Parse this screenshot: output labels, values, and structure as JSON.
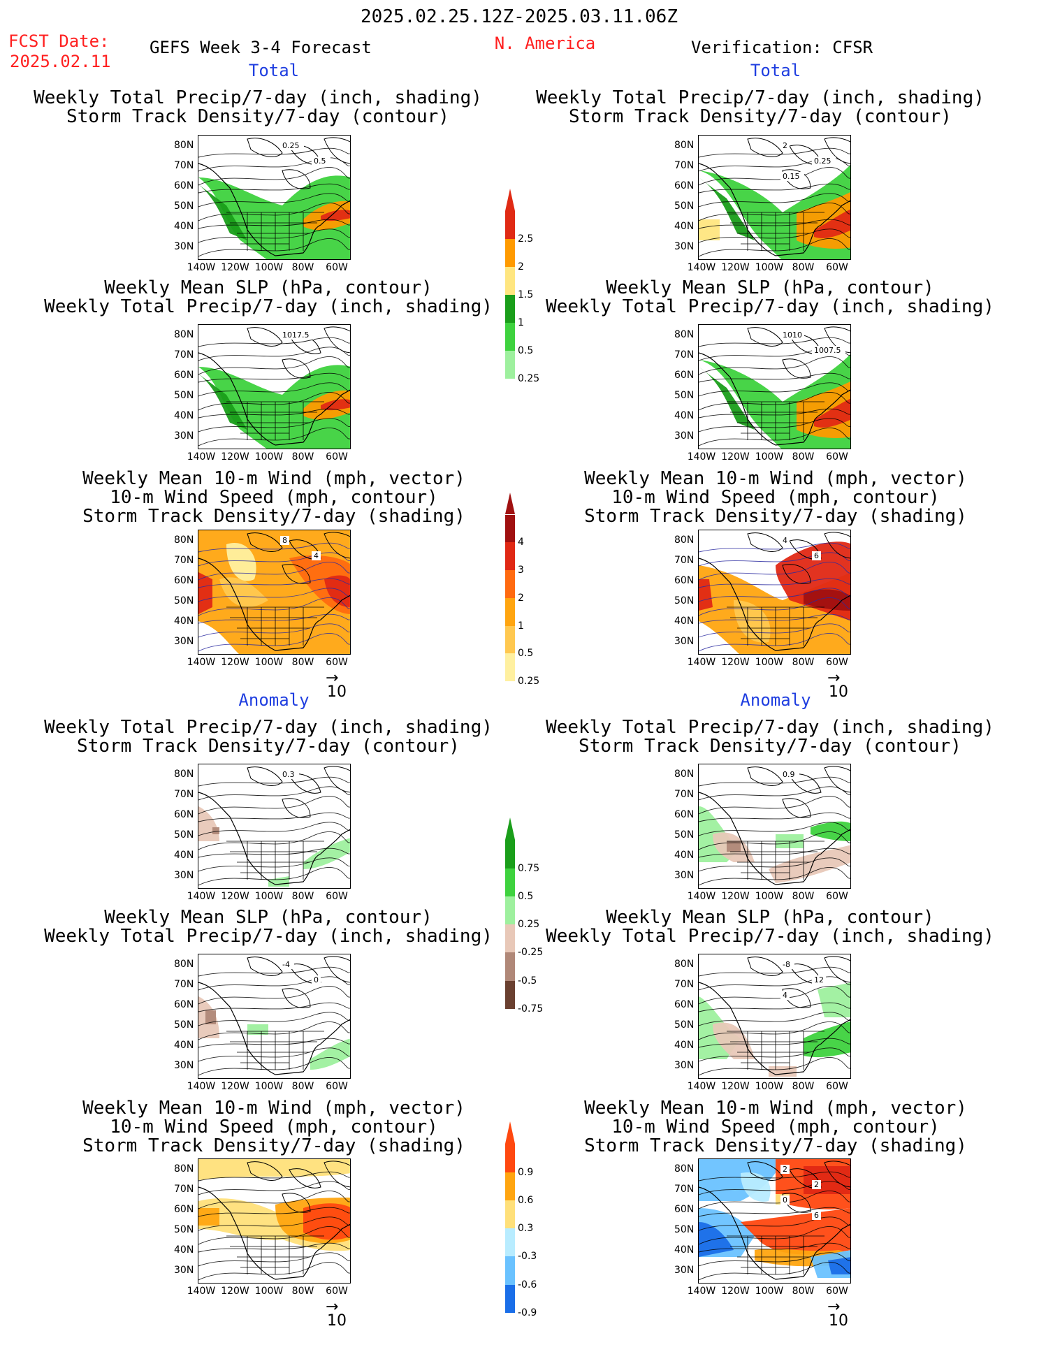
{
  "header": {
    "period": "2025.02.25.12Z-2025.03.11.06Z",
    "fcst_label": "FCST Date:",
    "fcst_date": "2025.02.11",
    "product": "GEFS Week 3-4 Forecast",
    "region": "N. America",
    "verification": "Verification: CFSR"
  },
  "sections": {
    "total_left": "Total",
    "total_right": "Total",
    "anomaly_left": "Anomaly",
    "anomaly_right": "Anomaly"
  },
  "titles": {
    "precip_track": [
      "Weekly Total Precip/7-day (inch, shading)",
      "Storm Track Density/7-day (contour)"
    ],
    "slp_precip": [
      "Weekly Mean SLP (hPa, contour)",
      "Weekly Total Precip/7-day (inch, shading)"
    ],
    "wind": [
      "Weekly Mean 10-m Wind (mph, vector)",
      "10-m Wind Speed (mph, contour)",
      "Storm Track Density/7-day (shading)"
    ]
  },
  "axes": {
    "lat_labels": [
      "80N",
      "70N",
      "60N",
      "50N",
      "40N",
      "30N"
    ],
    "lon_labels": [
      "140W",
      "120W",
      "100W",
      "80W",
      "60W"
    ]
  },
  "vector_ref": "10",
  "map_labels": {
    "p1": [
      "0.25",
      "0.5"
    ],
    "p2": [
      "1017.5"
    ],
    "p3": [
      "8",
      "4"
    ],
    "p4": [
      "2",
      "0.25",
      "0.15"
    ],
    "p5": [
      "1010",
      "1007.5"
    ],
    "p6": [
      "4",
      "6"
    ],
    "p7": [
      "0.3"
    ],
    "p8": [
      "-4",
      "0"
    ],
    "p9": [],
    "p10": [
      "0.9"
    ],
    "p11": [
      "-8",
      "12",
      "4"
    ],
    "p12": [
      "2",
      "2",
      "0",
      "6"
    ]
  },
  "colorbars": {
    "precip_total": {
      "labels": [
        "2.5",
        "2",
        "1.5",
        "1",
        "0.5",
        "0.25"
      ],
      "colors": [
        "#e02a14",
        "#ff9a00",
        "#ffe680",
        "#1a9e1a",
        "#3ed23e",
        "#9ef09e"
      ]
    },
    "track_total": {
      "labels": [
        "4",
        "3",
        "2",
        "1",
        "0.5",
        "0.25"
      ],
      "colors": [
        "#a01010",
        "#e02814",
        "#ff6a10",
        "#ffa510",
        "#ffc850",
        "#fff0a0"
      ]
    },
    "precip_anom": {
      "labels": [
        "0.75",
        "0.5",
        "0.25",
        "-0.25",
        "-0.5",
        "-0.75"
      ],
      "colors": [
        "#1a9e1a",
        "#3ed23e",
        "#9ef09e",
        "#e8c8b8",
        "#b08878",
        "#6a4030"
      ]
    },
    "track_anom": {
      "labels": [
        "0.9",
        "0.6",
        "0.3",
        "-0.3",
        "-0.6",
        "-0.9"
      ],
      "colors": [
        "#ff4810",
        "#ffa510",
        "#ffe07a",
        "#b8ecff",
        "#6ac2ff",
        "#1a6ee8"
      ]
    }
  }
}
